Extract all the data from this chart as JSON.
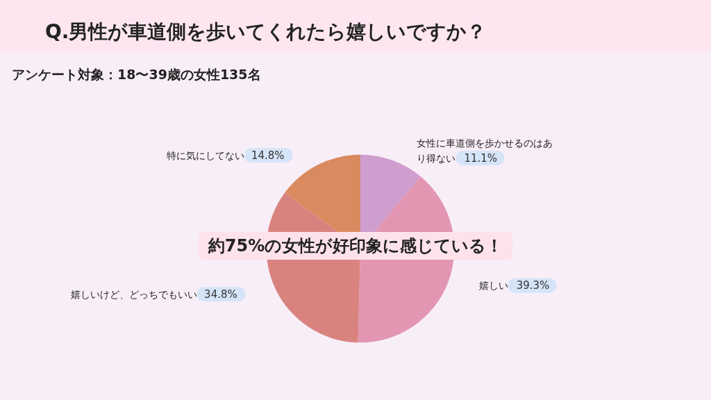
{
  "chart_data": {
    "type": "pie",
    "title": "Q.男性が車道側を歩いてくれたら嬉しいですか？",
    "subtitle": "アンケート対象：18〜39歳の女性135名",
    "annotations": [
      "約75%の女性が好印象に感じている！"
    ],
    "categories": [
      "女性に車道側を歩かせるのはあり得ない",
      "嬉しい",
      "嬉しいけど、どっちでもいい",
      "特に気にしてない"
    ],
    "values": [
      11.1,
      39.3,
      34.8,
      14.8
    ],
    "value_labels": [
      "11.1%",
      "39.3%",
      "34.8%",
      "14.8%"
    ],
    "colors": [
      "#d09dcf",
      "#e396b1",
      "#d9837f",
      "#d98b5f"
    ],
    "legend": false
  }
}
